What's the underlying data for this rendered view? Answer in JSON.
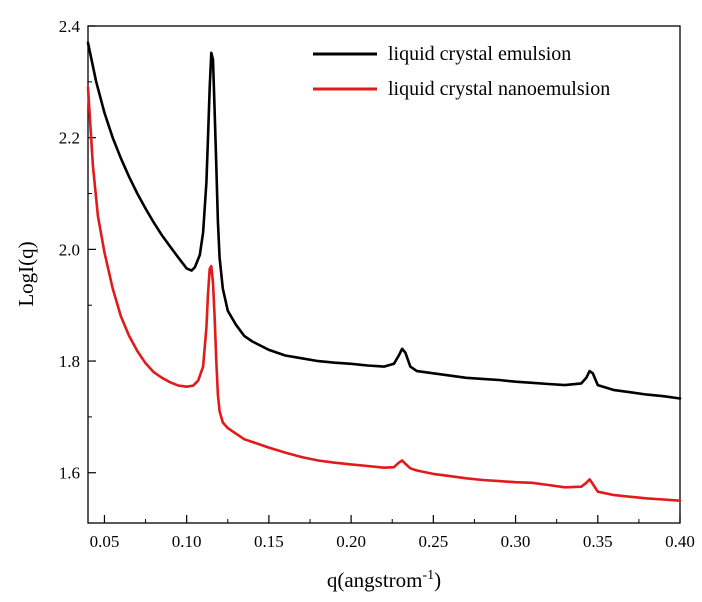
{
  "chart_data": {
    "type": "line",
    "title": "",
    "xlabel": "q(angstrom",
    "xlabel_superscript": "-1",
    "xlabel_suffix": ")",
    "ylabel": "LogI(q)",
    "xlim": [
      0.04,
      0.4
    ],
    "ylim": [
      1.51,
      2.4
    ],
    "x_ticks": [
      0.05,
      0.1,
      0.15,
      0.2,
      0.25,
      0.3,
      0.35,
      0.4
    ],
    "x_tick_labels": [
      "0.05",
      "0.10",
      "0.15",
      "0.20",
      "0.25",
      "0.30",
      "0.35",
      "0.40"
    ],
    "y_ticks": [
      1.6,
      1.8,
      2.0,
      2.2,
      2.4
    ],
    "y_tick_labels": [
      "1.6",
      "1.8",
      "2.0",
      "2.2",
      "2.4"
    ],
    "grid": false,
    "legend_position": "top-right",
    "series": [
      {
        "name": "liquid crystal emulsion",
        "color": "#000000",
        "points": [
          [
            0.04,
            2.37
          ],
          [
            0.045,
            2.3
          ],
          [
            0.05,
            2.245
          ],
          [
            0.055,
            2.2
          ],
          [
            0.06,
            2.163
          ],
          [
            0.065,
            2.13
          ],
          [
            0.07,
            2.1
          ],
          [
            0.075,
            2.073
          ],
          [
            0.08,
            2.048
          ],
          [
            0.085,
            2.025
          ],
          [
            0.09,
            2.005
          ],
          [
            0.095,
            1.985
          ],
          [
            0.1,
            1.966
          ],
          [
            0.103,
            1.962
          ],
          [
            0.105,
            1.968
          ],
          [
            0.108,
            1.99
          ],
          [
            0.11,
            2.03
          ],
          [
            0.112,
            2.12
          ],
          [
            0.113,
            2.2
          ],
          [
            0.114,
            2.29
          ],
          [
            0.115,
            2.352
          ],
          [
            0.116,
            2.34
          ],
          [
            0.117,
            2.25
          ],
          [
            0.118,
            2.15
          ],
          [
            0.119,
            2.05
          ],
          [
            0.12,
            1.985
          ],
          [
            0.122,
            1.93
          ],
          [
            0.125,
            1.89
          ],
          [
            0.13,
            1.865
          ],
          [
            0.135,
            1.845
          ],
          [
            0.14,
            1.835
          ],
          [
            0.15,
            1.82
          ],
          [
            0.16,
            1.81
          ],
          [
            0.17,
            1.805
          ],
          [
            0.18,
            1.8
          ],
          [
            0.19,
            1.797
          ],
          [
            0.2,
            1.795
          ],
          [
            0.21,
            1.792
          ],
          [
            0.22,
            1.79
          ],
          [
            0.226,
            1.795
          ],
          [
            0.229,
            1.81
          ],
          [
            0.231,
            1.822
          ],
          [
            0.233,
            1.815
          ],
          [
            0.236,
            1.79
          ],
          [
            0.24,
            1.782
          ],
          [
            0.25,
            1.778
          ],
          [
            0.26,
            1.774
          ],
          [
            0.27,
            1.77
          ],
          [
            0.28,
            1.768
          ],
          [
            0.29,
            1.766
          ],
          [
            0.3,
            1.763
          ],
          [
            0.31,
            1.761
          ],
          [
            0.32,
            1.759
          ],
          [
            0.33,
            1.757
          ],
          [
            0.34,
            1.76
          ],
          [
            0.343,
            1.77
          ],
          [
            0.345,
            1.782
          ],
          [
            0.347,
            1.778
          ],
          [
            0.35,
            1.757
          ],
          [
            0.36,
            1.748
          ],
          [
            0.37,
            1.744
          ],
          [
            0.38,
            1.74
          ],
          [
            0.39,
            1.737
          ],
          [
            0.4,
            1.733
          ]
        ]
      },
      {
        "name": "liquid crystal nanoemulsion",
        "color": "#e31a1c",
        "points": [
          [
            0.04,
            2.29
          ],
          [
            0.043,
            2.15
          ],
          [
            0.046,
            2.06
          ],
          [
            0.05,
            1.995
          ],
          [
            0.055,
            1.93
          ],
          [
            0.06,
            1.88
          ],
          [
            0.065,
            1.845
          ],
          [
            0.07,
            1.818
          ],
          [
            0.075,
            1.796
          ],
          [
            0.08,
            1.78
          ],
          [
            0.085,
            1.77
          ],
          [
            0.09,
            1.762
          ],
          [
            0.095,
            1.756
          ],
          [
            0.1,
            1.754
          ],
          [
            0.104,
            1.756
          ],
          [
            0.107,
            1.765
          ],
          [
            0.11,
            1.79
          ],
          [
            0.112,
            1.86
          ],
          [
            0.113,
            1.92
          ],
          [
            0.114,
            1.965
          ],
          [
            0.115,
            1.97
          ],
          [
            0.116,
            1.94
          ],
          [
            0.117,
            1.88
          ],
          [
            0.118,
            1.8
          ],
          [
            0.119,
            1.74
          ],
          [
            0.12,
            1.71
          ],
          [
            0.122,
            1.69
          ],
          [
            0.125,
            1.68
          ],
          [
            0.13,
            1.67
          ],
          [
            0.135,
            1.66
          ],
          [
            0.14,
            1.655
          ],
          [
            0.15,
            1.645
          ],
          [
            0.16,
            1.636
          ],
          [
            0.17,
            1.628
          ],
          [
            0.18,
            1.622
          ],
          [
            0.19,
            1.618
          ],
          [
            0.2,
            1.615
          ],
          [
            0.21,
            1.612
          ],
          [
            0.22,
            1.609
          ],
          [
            0.226,
            1.61
          ],
          [
            0.229,
            1.618
          ],
          [
            0.231,
            1.622
          ],
          [
            0.233,
            1.616
          ],
          [
            0.236,
            1.608
          ],
          [
            0.24,
            1.604
          ],
          [
            0.25,
            1.598
          ],
          [
            0.26,
            1.594
          ],
          [
            0.27,
            1.59
          ],
          [
            0.28,
            1.587
          ],
          [
            0.29,
            1.585
          ],
          [
            0.3,
            1.583
          ],
          [
            0.31,
            1.582
          ],
          [
            0.32,
            1.578
          ],
          [
            0.33,
            1.574
          ],
          [
            0.34,
            1.575
          ],
          [
            0.343,
            1.582
          ],
          [
            0.345,
            1.588
          ],
          [
            0.347,
            1.58
          ],
          [
            0.35,
            1.566
          ],
          [
            0.36,
            1.56
          ],
          [
            0.37,
            1.557
          ],
          [
            0.38,
            1.554
          ],
          [
            0.39,
            1.552
          ],
          [
            0.4,
            1.55
          ]
        ]
      }
    ]
  }
}
